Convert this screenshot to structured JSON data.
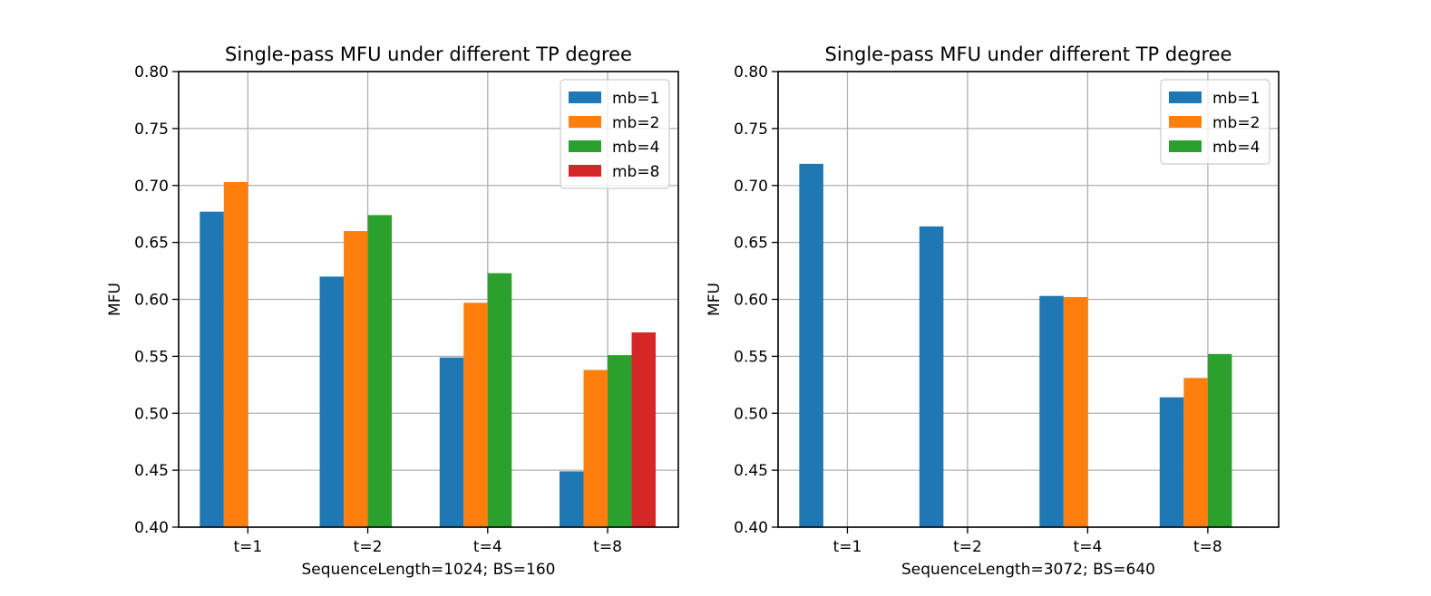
{
  "chart_data": [
    {
      "type": "bar",
      "title": "Single-pass MFU under different TP degree",
      "xlabel": "SequenceLength=1024; BS=160",
      "ylabel": "MFU",
      "ylim": [
        0.4,
        0.8
      ],
      "yticks": [
        "0.40",
        "0.45",
        "0.50",
        "0.55",
        "0.60",
        "0.65",
        "0.70",
        "0.75",
        "0.80"
      ],
      "categories": [
        "t=1",
        "t=2",
        "t=4",
        "t=8"
      ],
      "grid": true,
      "legend_position": "top-right",
      "series": [
        {
          "name": "mb=1",
          "color": "#1f77b4",
          "values": [
            0.677,
            0.62,
            0.549,
            0.449
          ]
        },
        {
          "name": "mb=2",
          "color": "#ff7f0e",
          "values": [
            0.703,
            0.66,
            0.597,
            0.538
          ]
        },
        {
          "name": "mb=4",
          "color": "#2ca02c",
          "values": [
            null,
            0.674,
            0.623,
            0.551
          ]
        },
        {
          "name": "mb=8",
          "color": "#d62728",
          "values": [
            null,
            null,
            null,
            0.571
          ]
        }
      ]
    },
    {
      "type": "bar",
      "title": "Single-pass MFU under different TP degree",
      "xlabel": "SequenceLength=3072; BS=640",
      "ylabel": "MFU",
      "ylim": [
        0.4,
        0.8
      ],
      "yticks": [
        "0.40",
        "0.45",
        "0.50",
        "0.55",
        "0.60",
        "0.65",
        "0.70",
        "0.75",
        "0.80"
      ],
      "categories": [
        "t=1",
        "t=2",
        "t=4",
        "t=8"
      ],
      "grid": true,
      "legend_position": "top-right",
      "series": [
        {
          "name": "mb=1",
          "color": "#1f77b4",
          "values": [
            0.719,
            0.664,
            0.603,
            0.514
          ]
        },
        {
          "name": "mb=2",
          "color": "#ff7f0e",
          "values": [
            null,
            null,
            0.602,
            0.531
          ]
        },
        {
          "name": "mb=4",
          "color": "#2ca02c",
          "values": [
            null,
            null,
            null,
            0.552
          ]
        }
      ]
    }
  ]
}
